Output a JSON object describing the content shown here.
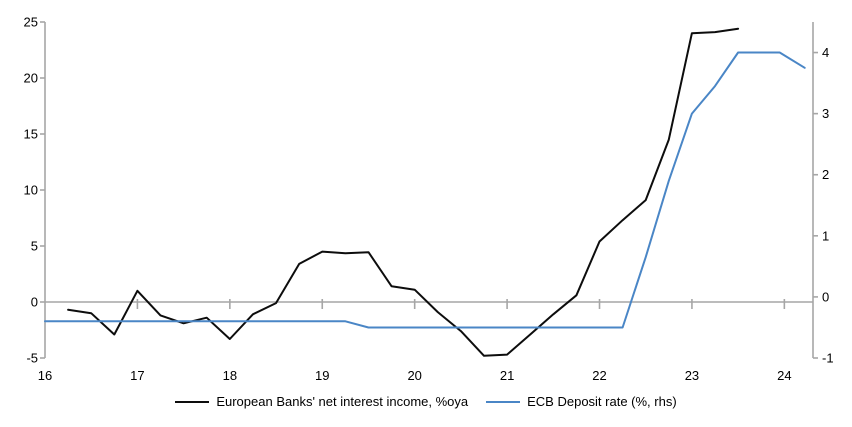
{
  "chart_data": {
    "type": "line",
    "title": "",
    "x_axis": {
      "tick_labels": [
        "16",
        "17",
        "18",
        "19",
        "20",
        "21",
        "22",
        "23",
        "24"
      ],
      "tick_values": [
        16,
        17,
        18,
        19,
        20,
        21,
        22,
        23,
        24
      ],
      "min": 16,
      "max": 24.31
    },
    "y_axis_left": {
      "tick_labels": [
        "25",
        "20",
        "15",
        "10",
        "5",
        "0",
        "-5"
      ],
      "tick_values": [
        25,
        20,
        15,
        10,
        5,
        0,
        -5
      ],
      "min": -5,
      "max": 25
    },
    "y_axis_right": {
      "tick_labels": [
        "4",
        "3",
        "2",
        "1",
        "0",
        "-1"
      ],
      "tick_values": [
        4,
        3,
        2,
        1,
        0,
        -1
      ],
      "min": -1,
      "max": 4.5
    },
    "grid": "zero-line-only",
    "legend_position": "bottom",
    "series": [
      {
        "name": "European Banks' net interest income, %oya",
        "axis": "left",
        "color": "#0d0d0d",
        "points": [
          [
            16.25,
            -0.7
          ],
          [
            16.5,
            -1.0
          ],
          [
            16.75,
            -2.9
          ],
          [
            17.0,
            1.0
          ],
          [
            17.25,
            -1.2
          ],
          [
            17.5,
            -1.9
          ],
          [
            17.75,
            -1.4
          ],
          [
            18.0,
            -3.3
          ],
          [
            18.25,
            -1.1
          ],
          [
            18.5,
            -0.1
          ],
          [
            18.75,
            3.4
          ],
          [
            19.0,
            4.5
          ],
          [
            19.25,
            4.35
          ],
          [
            19.5,
            4.45
          ],
          [
            19.75,
            1.4
          ],
          [
            20.0,
            1.1
          ],
          [
            20.25,
            -0.9
          ],
          [
            20.5,
            -2.6
          ],
          [
            20.75,
            -4.8
          ],
          [
            21.0,
            -4.7
          ],
          [
            21.25,
            -2.9
          ],
          [
            21.5,
            -1.1
          ],
          [
            21.75,
            0.6
          ],
          [
            22.0,
            5.4
          ],
          [
            22.25,
            7.3
          ],
          [
            22.5,
            9.1
          ],
          [
            22.75,
            14.5
          ],
          [
            23.0,
            24.0
          ],
          [
            23.25,
            24.1
          ],
          [
            23.5,
            24.4
          ]
        ]
      },
      {
        "name": "ECB Deposit rate (%, rhs)",
        "axis": "right",
        "color": "#4a86c6",
        "points": [
          [
            16.0,
            -0.4
          ],
          [
            19.25,
            -0.4
          ],
          [
            19.5,
            -0.5
          ],
          [
            22.25,
            -0.5
          ],
          [
            22.5,
            0.65
          ],
          [
            22.75,
            1.9
          ],
          [
            23.0,
            3.0
          ],
          [
            23.25,
            3.45
          ],
          [
            23.5,
            4.0
          ],
          [
            23.95,
            4.0
          ],
          [
            24.22,
            3.75
          ]
        ]
      }
    ]
  },
  "colors": {
    "axis": "#a6a6a6",
    "background": "#ffffff",
    "text": "#000000"
  }
}
